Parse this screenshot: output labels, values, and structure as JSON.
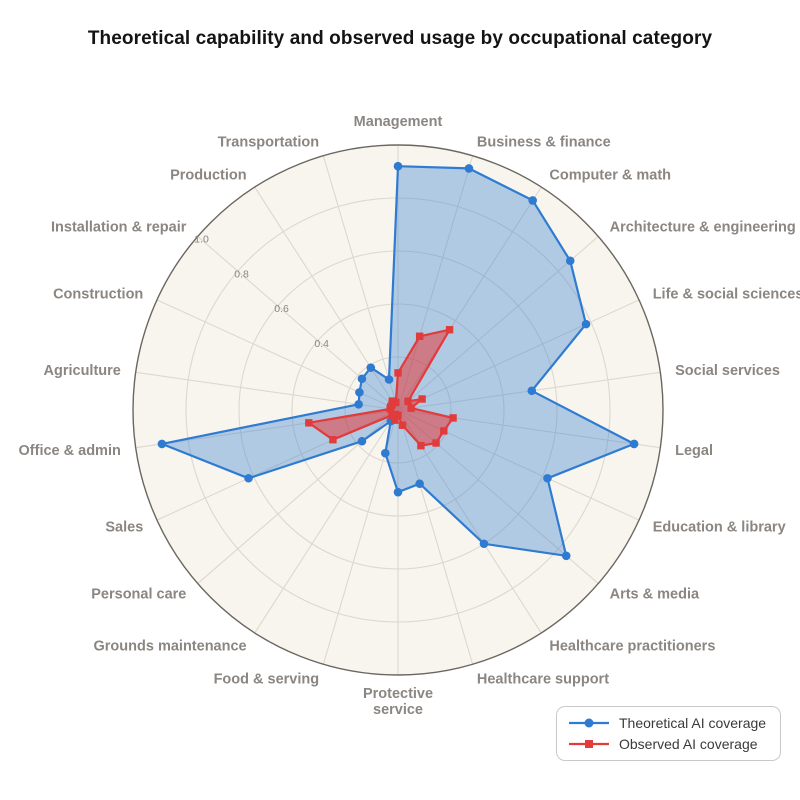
{
  "title": "Theoretical capability and observed usage by occupational category",
  "chart_data": {
    "type": "radar",
    "categories": [
      "Management",
      "Business & finance",
      "Computer & math",
      "Architecture & engineering",
      "Life & social sciences",
      "Social services",
      "Legal",
      "Education & library",
      "Arts & media",
      "Healthcare practitioners",
      "Healthcare support",
      "Protective\nservice",
      "Food & serving",
      "Grounds maintenance",
      "Personal care",
      "Sales",
      "Office & admin",
      "Agriculture",
      "Construction",
      "Installation & repair",
      "Production",
      "Transportation"
    ],
    "series": [
      {
        "name": "Theoretical AI coverage",
        "color": "#2f7bd1",
        "fill_opacity": 0.35,
        "marker": "circle",
        "values": [
          0.92,
          0.95,
          0.94,
          0.86,
          0.78,
          0.51,
          0.9,
          0.62,
          0.84,
          0.6,
          0.29,
          0.31,
          0.17,
          0.05,
          0.18,
          0.62,
          0.9,
          0.15,
          0.16,
          0.18,
          0.19,
          0.12
        ]
      },
      {
        "name": "Observed AI coverage",
        "color": "#e23b3b",
        "fill_opacity": 0.55,
        "marker": "square",
        "values": [
          0.14,
          0.29,
          0.36,
          0.05,
          0.1,
          0.05,
          0.21,
          0.19,
          0.19,
          0.16,
          0.06,
          0.02,
          0.04,
          0.02,
          0.03,
          0.27,
          0.34,
          0.03,
          0.03,
          0.03,
          0.04,
          0.03
        ]
      }
    ],
    "radial_axis": {
      "min": 0,
      "max": 1.0,
      "grid_step": 0.2,
      "tick_labels": [
        "0.4",
        "0.6",
        "0.8",
        "1.0"
      ],
      "tick_label_angle_deg": 139.09
    },
    "angular_direction": "clockwise-from-top",
    "grid": true,
    "legend_position": "lower right",
    "colors": {
      "plot_background": "#f8f5ee",
      "grid_line": "#ddd8ce",
      "outer_ring": "#6b665f",
      "category_label": "#8b8681",
      "tick_label": "#8a8680"
    }
  }
}
